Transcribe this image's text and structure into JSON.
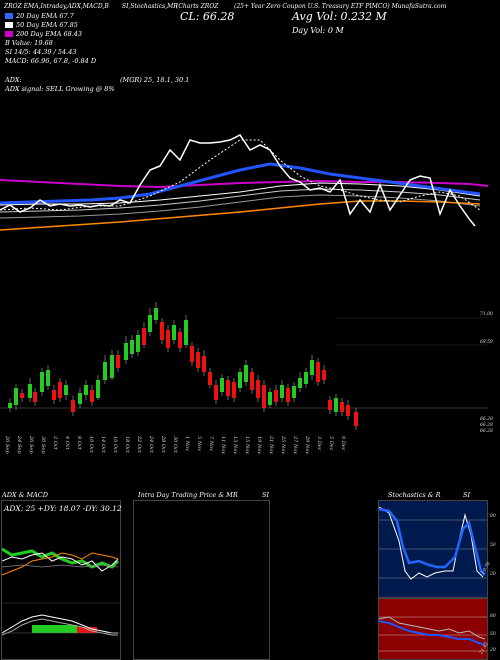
{
  "header": {
    "left": "ZROZ EMA,Intraday,ADX,MACD,B",
    "mid": "SI,Stochastics,MR",
    "chart_label": "(Charts ZROZ",
    "right": "(25+ Year Zero Coupon U.S. Treasury ETF PIMCO) MunafaSutra.com"
  },
  "legend": {
    "ema20": "20 Day EMA 67.7",
    "ema50": "50 Day EMA 67.85",
    "ema200": "200 Day EMA 68.43",
    "b_value": "B   Value: 19.68",
    "si": "SI 14/5: 44.39 / 54.43",
    "macd": "MACD: 66.96, 67.8, -0.84 D"
  },
  "quote": {
    "close": "CL: 66.28",
    "avg_vol": "Avg Vol: 0.232  M",
    "day_vol": "Day Vol: 0   M"
  },
  "adx": {
    "label": "ADX:",
    "value": "(MGR) 25, 18.1, 30.1",
    "signal": "ADX  signal: SELL Growing @ 8%"
  },
  "price_labels": [
    "71.00",
    "69.59",
    "66.28",
    "66.28",
    "66.28"
  ],
  "dates": [
    "20 Sep",
    "24 Sep",
    "26 Sep",
    "30 Sep",
    "2 Oct",
    "4 Oct",
    "8 Oct",
    "10 Oct",
    "14 Oct",
    "16 Oct",
    "18 Oct",
    "22 Oct",
    "24 Oct",
    "28 Oct",
    "30 Oct",
    "1 Nov",
    "5 Nov",
    "7 Nov",
    "11 Nov",
    "13 Nov",
    "15 Nov",
    "19 Nov",
    "21 Nov",
    "25 Nov",
    "27 Nov",
    "29 Nov",
    "3 Dec",
    "5 Dec",
    "9 Dec"
  ],
  "panels": {
    "adx_title": "ADX  & MACD",
    "adx_readout": "ADX: 25 +DY: 18.07 -DY: 30.12",
    "mr_title": "Intra Day Trading Price  & MR",
    "mr_si": "SI",
    "stoch_title": "Stochastics & R",
    "stoch_si": "SI"
  },
  "stoch_scale": [
    "80",
    "50",
    "20"
  ],
  "stoch_value": "19.70",
  "si_scale": [
    "80",
    "50",
    "20"
  ],
  "si_value": "21.42",
  "colors": {
    "bull": "#22cc22",
    "bear": "#ee1111",
    "ema20": "#3366ff",
    "ema50": "#ffffff",
    "ema200": "#cc00cc"
  }
}
